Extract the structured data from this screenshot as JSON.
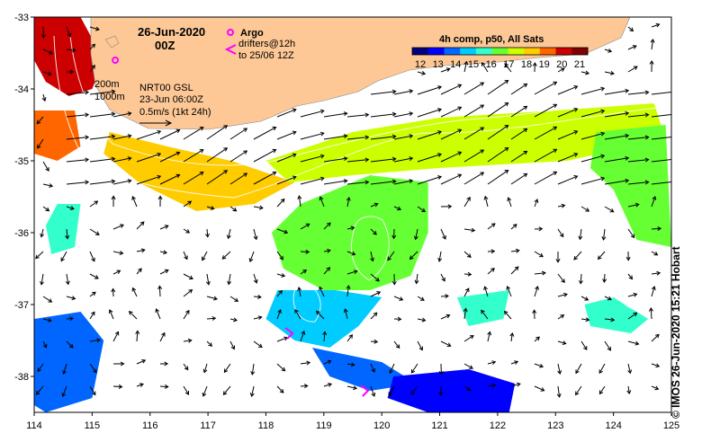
{
  "header": {
    "date": "26-Jun-2020",
    "time": "00Z"
  },
  "legend": {
    "argo_label": "Argo",
    "drifter_label_1": "drifters@12h",
    "drifter_label_2": "to 25/06 12Z",
    "argo_color": "#ff00ff",
    "drifter_color": "#ff00ff"
  },
  "colorbar": {
    "title": "4h comp, p50, All Sats",
    "ticks": [
      "12",
      "13",
      "14",
      "15",
      "16",
      "17",
      "18",
      "19",
      "20",
      "21"
    ],
    "colors": [
      "#00007f",
      "#0000ff",
      "#0066ff",
      "#00ccff",
      "#33ffcc",
      "#66ff33",
      "#ccff00",
      "#ffcc00",
      "#ff6600",
      "#cc0000",
      "#7f0000"
    ]
  },
  "contours": {
    "label_200": "200m",
    "label_1000": "1000m"
  },
  "analysis": {
    "line1": "NRT00 GSL",
    "line2": "23-Jun 06:00Z",
    "line3": "0.5m/s (1kt 24h)"
  },
  "credit": "© IMOS 26-Jun-2020 15:21 Hobart",
  "chart_data": {
    "type": "map",
    "x_axis": {
      "ticks": [
        "114",
        "115",
        "116",
        "117",
        "118",
        "119",
        "120",
        "121",
        "122",
        "123",
        "124",
        "125"
      ],
      "range": [
        114,
        125
      ]
    },
    "y_axis": {
      "ticks": [
        "-33",
        "-34",
        "-35",
        "-36",
        "-37",
        "-38"
      ],
      "range": [
        -38.5,
        -33
      ]
    },
    "land_color": "#fdc896",
    "sst_regions": [
      {
        "sst": 20.5,
        "pts": [
          [
            114.0,
            -33.0
          ],
          [
            114.8,
            -33.0
          ],
          [
            115.2,
            -33.6
          ],
          [
            115.0,
            -34.0
          ],
          [
            114.6,
            -34.1
          ],
          [
            114.2,
            -33.9
          ],
          [
            114.0,
            -33.6
          ]
        ]
      },
      {
        "sst": 19.5,
        "pts": [
          [
            114.0,
            -34.3
          ],
          [
            114.7,
            -34.3
          ],
          [
            114.8,
            -34.8
          ],
          [
            114.4,
            -35.0
          ],
          [
            114.0,
            -34.9
          ]
        ]
      },
      {
        "sst": 19.0,
        "pts": [
          [
            115.3,
            -34.6
          ],
          [
            116.3,
            -34.8
          ],
          [
            117.4,
            -35.0
          ],
          [
            118.5,
            -35.3
          ],
          [
            117.8,
            -35.6
          ],
          [
            116.8,
            -35.7
          ],
          [
            115.8,
            -35.3
          ],
          [
            115.2,
            -34.9
          ]
        ]
      },
      {
        "sst": 17.5,
        "pts": [
          [
            118.0,
            -35.0
          ],
          [
            119.5,
            -34.6
          ],
          [
            121.0,
            -34.4
          ],
          [
            123.0,
            -34.3
          ],
          [
            124.7,
            -34.2
          ],
          [
            124.9,
            -34.7
          ],
          [
            123.2,
            -35.0
          ],
          [
            121.0,
            -35.1
          ],
          [
            119.5,
            -35.2
          ],
          [
            118.4,
            -35.3
          ]
        ]
      },
      {
        "sst": 16.5,
        "pts": [
          [
            118.6,
            -35.6
          ],
          [
            119.8,
            -35.2
          ],
          [
            120.8,
            -35.3
          ],
          [
            120.8,
            -36.0
          ],
          [
            120.5,
            -36.6
          ],
          [
            119.8,
            -36.8
          ],
          [
            119.0,
            -36.8
          ],
          [
            118.3,
            -36.5
          ],
          [
            118.1,
            -36.0
          ]
        ]
      },
      {
        "sst": 17.0,
        "pts": [
          [
            123.7,
            -34.6
          ],
          [
            124.9,
            -34.5
          ],
          [
            125.0,
            -36.2
          ],
          [
            124.4,
            -36.1
          ],
          [
            124.0,
            -35.4
          ],
          [
            123.6,
            -35.1
          ]
        ]
      },
      {
        "sst": 16.0,
        "pts": [
          [
            114.4,
            -35.6
          ],
          [
            114.8,
            -35.6
          ],
          [
            114.7,
            -36.2
          ],
          [
            114.3,
            -36.3
          ],
          [
            114.2,
            -35.9
          ]
        ]
      },
      {
        "sst": 15.3,
        "pts": [
          [
            118.2,
            -36.8
          ],
          [
            119.2,
            -36.8
          ],
          [
            120.0,
            -36.9
          ],
          [
            119.6,
            -37.3
          ],
          [
            119.1,
            -37.6
          ],
          [
            118.5,
            -37.5
          ],
          [
            118.0,
            -37.2
          ]
        ]
      },
      {
        "sst": 15.5,
        "pts": [
          [
            121.3,
            -36.9
          ],
          [
            122.2,
            -36.8
          ],
          [
            122.1,
            -37.2
          ],
          [
            121.5,
            -37.3
          ]
        ]
      },
      {
        "sst": 15.5,
        "pts": [
          [
            123.5,
            -37.0
          ],
          [
            124.0,
            -36.9
          ],
          [
            124.6,
            -37.2
          ],
          [
            124.3,
            -37.4
          ],
          [
            123.6,
            -37.3
          ]
        ]
      },
      {
        "sst": 14.0,
        "pts": [
          [
            114.0,
            -37.2
          ],
          [
            114.8,
            -37.1
          ],
          [
            115.2,
            -37.5
          ],
          [
            115.0,
            -38.3
          ],
          [
            114.2,
            -38.5
          ],
          [
            114.0,
            -38.4
          ]
        ]
      },
      {
        "sst": 14.3,
        "pts": [
          [
            118.8,
            -37.6
          ],
          [
            120.0,
            -37.8
          ],
          [
            120.6,
            -38.1
          ],
          [
            119.8,
            -38.2
          ],
          [
            119.1,
            -38.0
          ]
        ]
      },
      {
        "sst": 12.8,
        "pts": [
          [
            120.2,
            -38.0
          ],
          [
            121.5,
            -37.9
          ],
          [
            122.3,
            -38.1
          ],
          [
            122.2,
            -38.5
          ],
          [
            120.8,
            -38.5
          ],
          [
            120.1,
            -38.3
          ]
        ]
      }
    ],
    "argo_floats": [
      {
        "lon": 115.4,
        "lat": -33.6
      }
    ],
    "drifters": [
      {
        "lon": 118.4,
        "lat": -37.4
      },
      {
        "lon": 119.7,
        "lat": -38.2
      }
    ]
  }
}
